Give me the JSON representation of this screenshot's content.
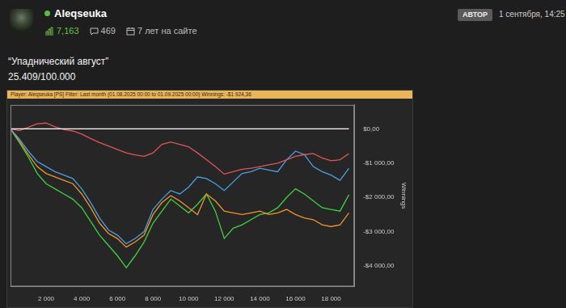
{
  "header": {
    "username": "Aleqseuka",
    "rating": "7,163",
    "comments": "469",
    "member": "7 лет на сайте",
    "badge": "АВТОР",
    "date": "1 сентября, 14:25"
  },
  "post": {
    "title": "“Упаднический август”",
    "text": "25.409/100.000"
  },
  "chart_data": {
    "type": "line",
    "title": "Player: Aleqseuka [PS]  Filter: Last month (01.08.2025 00:00 to 01.09.2025 00:00)  Winnings: -$1 924,36",
    "y_label": "Winnings",
    "x": [
      0,
      500,
      1000,
      1500,
      2000,
      2500,
      3000,
      3500,
      4000,
      4500,
      5000,
      5500,
      6000,
      6500,
      7000,
      7500,
      8000,
      8500,
      9000,
      9500,
      10000,
      10500,
      11000,
      11500,
      12000,
      12500,
      13000,
      13500,
      14000,
      14500,
      15000,
      15500,
      16000,
      16500,
      17000,
      17500,
      18000,
      18500,
      19000
    ],
    "series": [
      {
        "color": "#ffffff",
        "values": [
          0,
          0,
          0,
          0,
          0,
          0,
          0,
          0,
          0,
          0,
          0,
          0,
          0,
          0,
          0,
          0,
          0,
          0,
          0,
          0,
          0,
          0,
          0,
          0,
          0,
          0,
          0,
          0,
          0,
          0,
          0,
          0,
          0,
          0,
          0,
          0,
          0,
          0,
          0
        ]
      },
      {
        "color": "#e05555",
        "values": [
          0,
          -50,
          50,
          150,
          170,
          60,
          -20,
          -60,
          -150,
          -280,
          -400,
          -500,
          -600,
          -700,
          -760,
          -800,
          -700,
          -450,
          -380,
          -450,
          -520,
          -700,
          -900,
          -1100,
          -1320,
          -1250,
          -1180,
          -1150,
          -1100,
          -1050,
          -1000,
          -900,
          -800,
          -750,
          -720,
          -850,
          -930,
          -900,
          -720
        ]
      },
      {
        "color": "#4a9fe0",
        "values": [
          0,
          -300,
          -650,
          -950,
          -1100,
          -1250,
          -1350,
          -1450,
          -1750,
          -2150,
          -2600,
          -2950,
          -3100,
          -3350,
          -3200,
          -3000,
          -2350,
          -2050,
          -1800,
          -1900,
          -1700,
          -1400,
          -1450,
          -1600,
          -1800,
          -1550,
          -1300,
          -1250,
          -1150,
          -1200,
          -1250,
          -900,
          -650,
          -750,
          -1100,
          -1250,
          -1350,
          -1500,
          -1150
        ]
      },
      {
        "color": "#f0932b",
        "values": [
          0,
          -350,
          -750,
          -1100,
          -1300,
          -1400,
          -1500,
          -1600,
          -1900,
          -2300,
          -2750,
          -3050,
          -3200,
          -3450,
          -3300,
          -3100,
          -2500,
          -2150,
          -1950,
          -2100,
          -2300,
          -2500,
          -1900,
          -2100,
          -2400,
          -2450,
          -2500,
          -2450,
          -2400,
          -2500,
          -2450,
          -2350,
          -2500,
          -2600,
          -2650,
          -2800,
          -2850,
          -2800,
          -2450
        ]
      },
      {
        "color": "#3fd13f",
        "values": [
          0,
          -400,
          -820,
          -1300,
          -1600,
          -1750,
          -1900,
          -2050,
          -2300,
          -2700,
          -3100,
          -3400,
          -3700,
          -4050,
          -3700,
          -3300,
          -2750,
          -2400,
          -2050,
          -2250,
          -2450,
          -2200,
          -1900,
          -2400,
          -3200,
          -2900,
          -2800,
          -2650,
          -2500,
          -2450,
          -2300,
          -2000,
          -1750,
          -1900,
          -2100,
          -2300,
          -2350,
          -2400,
          -1920
        ]
      }
    ],
    "xlim": [
      0,
      19300
    ],
    "ylim": [
      -4600,
      700
    ],
    "xticks": [
      {
        "value": 2000,
        "label": "2 000"
      },
      {
        "value": 4000,
        "label": "4 000"
      },
      {
        "value": 6000,
        "label": "6 000"
      },
      {
        "value": 8000,
        "label": "8 000"
      },
      {
        "value": 10000,
        "label": "10 000"
      },
      {
        "value": 12000,
        "label": "12 000"
      },
      {
        "value": 14000,
        "label": "14 000"
      },
      {
        "value": 16000,
        "label": "16 000"
      },
      {
        "value": 18000,
        "label": "18 000"
      }
    ],
    "yticks": [
      {
        "value": 0,
        "label": "$0,00"
      },
      {
        "value": -1000,
        "label": "-$1 000,00"
      },
      {
        "value": -2000,
        "label": "-$2 000,00"
      },
      {
        "value": -3000,
        "label": "-$3 000,00"
      },
      {
        "value": -4000,
        "label": "-$4 000,00"
      }
    ],
    "grid": false
  }
}
